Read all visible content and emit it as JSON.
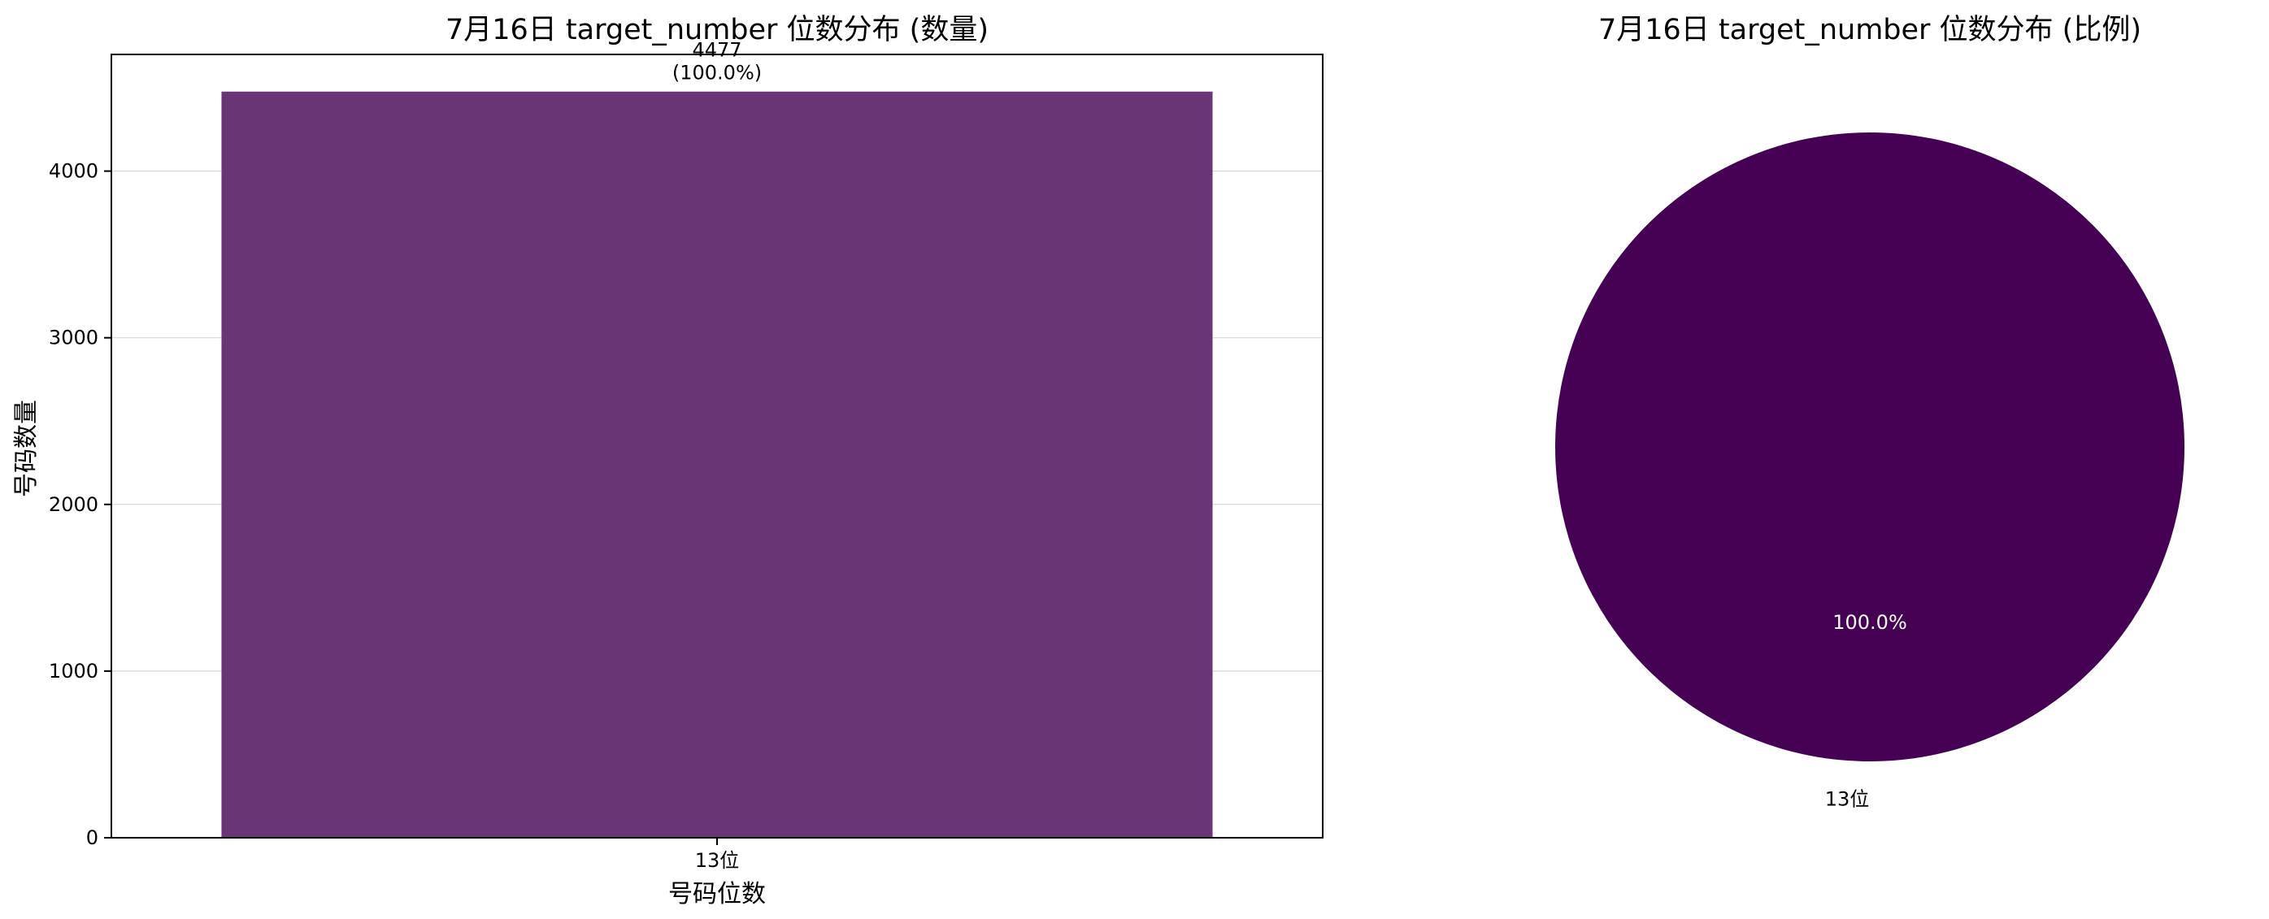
{
  "chart_data": [
    {
      "type": "bar",
      "title": "7月16日 target_number 位数分布 (数量)",
      "xlabel": "号码位数",
      "ylabel": "号码数量",
      "categories": [
        "13位"
      ],
      "values": [
        4477
      ],
      "value_labels": [
        "4477"
      ],
      "percent_labels": [
        "(100.0%)"
      ],
      "ylim": [
        0,
        4700
      ],
      "yticks": [
        0,
        1000,
        2000,
        3000,
        4000
      ],
      "grid": "horizontal",
      "bar_color": "#693576"
    },
    {
      "type": "pie",
      "title": "7月16日 target_number 位数分布 (比例)",
      "labels": [
        "13位"
      ],
      "values": [
        100.0
      ],
      "autopct": [
        "100.0%"
      ],
      "colors": [
        "#440154"
      ]
    }
  ]
}
